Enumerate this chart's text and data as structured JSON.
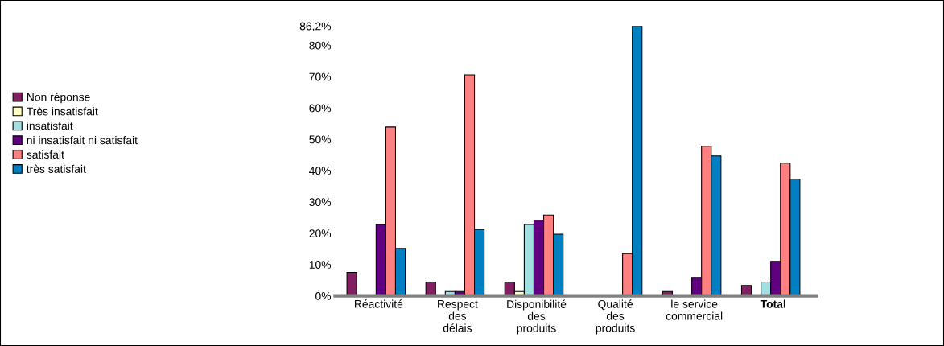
{
  "chart_data": {
    "type": "bar",
    "categories": [
      "Réactivité",
      "Respect\ndes\ndélais",
      "Disponibilité\ndes\nproduits",
      "Qualité\ndes\nproduits",
      "le service\ncommercial",
      "Total"
    ],
    "series": [
      {
        "name": "Non réponse",
        "color": "#802060",
        "values": [
          7.5,
          4.4,
          4.4,
          null,
          1.4,
          3.3
        ]
      },
      {
        "name": "Très insatisfait",
        "color": "#ffffc0",
        "values": [
          null,
          null,
          1.4,
          null,
          null,
          null
        ]
      },
      {
        "name": "insatisfait",
        "color": "#a0e0e0",
        "values": [
          null,
          1.4,
          22.8,
          null,
          null,
          4.4
        ]
      },
      {
        "name": "ni insatisfait ni satisfait",
        "color": "#600080",
        "values": [
          22.8,
          1.4,
          24.2,
          null,
          5.9,
          11.0
        ]
      },
      {
        "name": "satisfait",
        "color": "#ff8080",
        "values": [
          53.9,
          70.6,
          25.8,
          13.5,
          47.8,
          42.4
        ]
      },
      {
        "name": "très satisfait",
        "color": "#0080c0",
        "values": [
          15.1,
          21.2,
          19.7,
          86.2,
          44.7,
          37.3
        ]
      }
    ],
    "ylim": [
      0,
      86.2
    ],
    "yticks": [
      {
        "value": 0,
        "label": "0%"
      },
      {
        "value": 10,
        "label": "10%"
      },
      {
        "value": 20,
        "label": "20%"
      },
      {
        "value": 30,
        "label": "30%"
      },
      {
        "value": 40,
        "label": "40%"
      },
      {
        "value": 50,
        "label": "50%"
      },
      {
        "value": 60,
        "label": "60%"
      },
      {
        "value": 70,
        "label": "70%"
      },
      {
        "value": 80,
        "label": "80%"
      },
      {
        "value": 86.2,
        "label": "86,2%"
      }
    ],
    "grid": false,
    "legend": "left"
  }
}
